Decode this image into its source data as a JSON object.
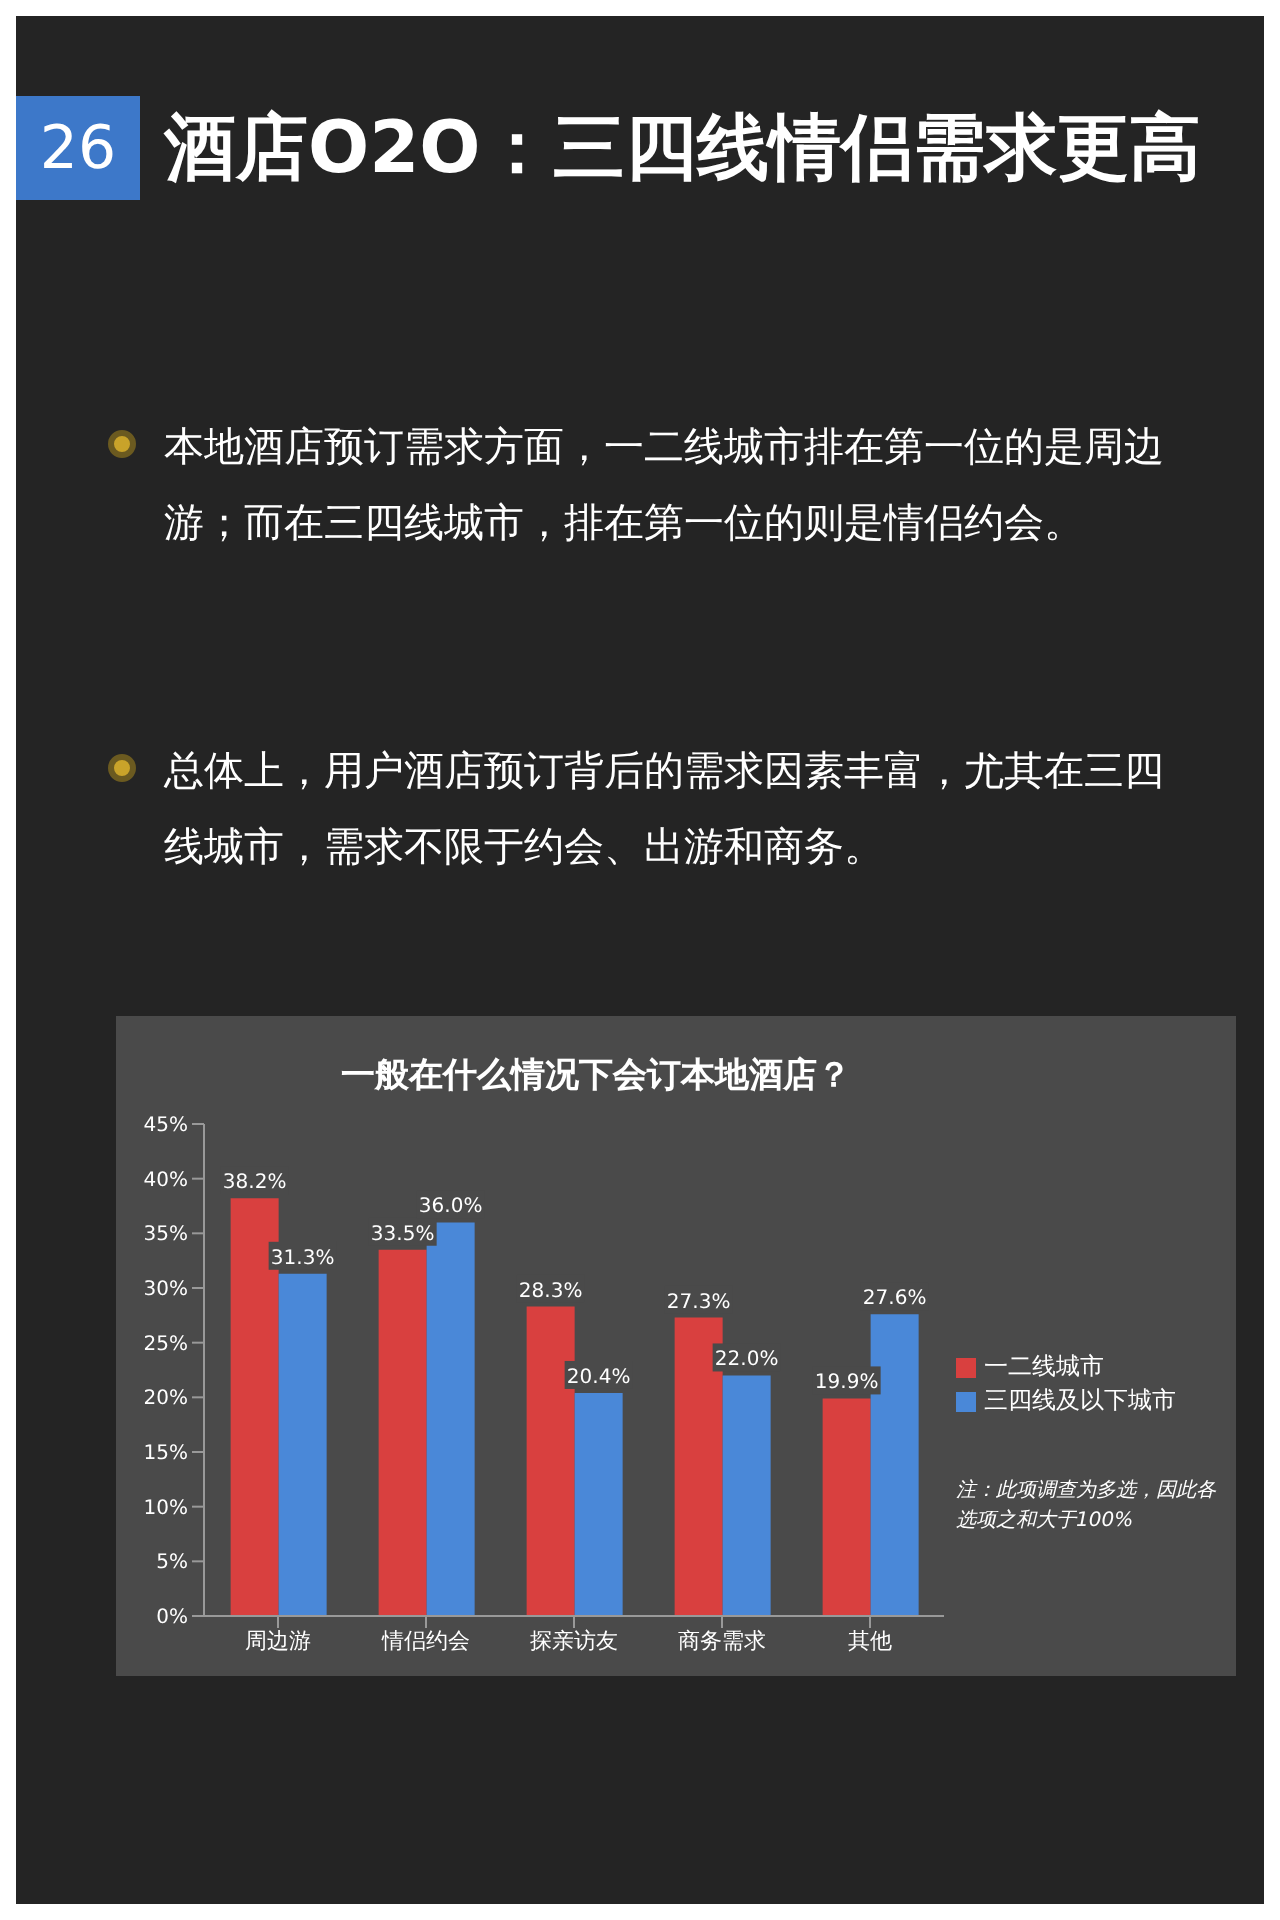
{
  "chart_data": {
    "type": "bar",
    "title": "一般在什么情况下会订本地酒店？",
    "categories": [
      "周边游",
      "情侣约会",
      "探亲访友",
      "商务需求",
      "其他"
    ],
    "series": [
      {
        "name": "一二线城市",
        "color": "#d9403f",
        "values": [
          38.2,
          33.5,
          28.3,
          27.3,
          19.9
        ],
        "value_labels": [
          "38.2%",
          "33.5%",
          "28.3%",
          "27.3%",
          "19.9%"
        ]
      },
      {
        "name": "三四线及以下城市",
        "color": "#4a88d8",
        "values": [
          31.3,
          36.0,
          20.4,
          22.0,
          27.6
        ],
        "value_labels": [
          "31.3%",
          "36.0%",
          "20.4%",
          "22.0%",
          "27.6%"
        ]
      }
    ],
    "ylim": [
      0,
      45
    ],
    "yticks": [
      {
        "value": 0,
        "label": "0%"
      },
      {
        "value": 5,
        "label": "5%"
      },
      {
        "value": 10,
        "label": "10%"
      },
      {
        "value": 15,
        "label": "15%"
      },
      {
        "value": 20,
        "label": "20%"
      },
      {
        "value": 25,
        "label": "25%"
      },
      {
        "value": 30,
        "label": "30%"
      },
      {
        "value": 35,
        "label": "35%"
      },
      {
        "value": 40,
        "label": "40%"
      },
      {
        "value": 45,
        "label": "45%"
      }
    ],
    "legend": "right",
    "annotations": [
      "26",
      "酒店O2O：三四线情侣需求更高",
      "本地酒店预订需求方面，一二线城市排在第一位的是周边游；而在三四线城市，排在第一位的则是情侣约会。",
      "总体上，用户酒店预订背后的需求因素丰富，尤其在三四线城市，需求不限于约会、出游和商务。",
      "注：此项调查为多选，因此各选项之和大于100%"
    ]
  }
}
